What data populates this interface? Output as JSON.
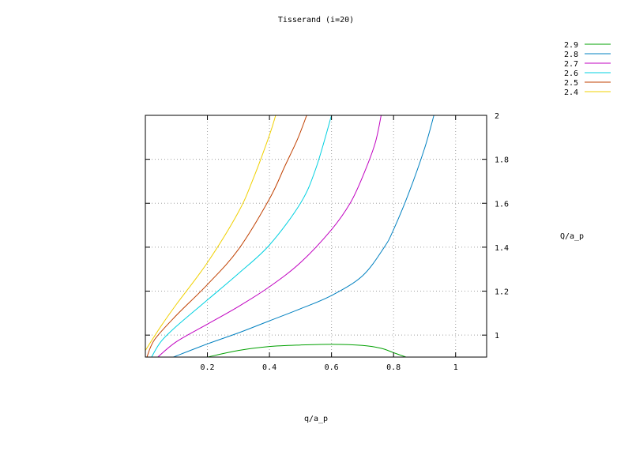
{
  "chart_data": {
    "type": "line",
    "title": "Tisserand (i=20)",
    "xlabel": "q/a_p",
    "ylabel": "Q/a_p",
    "xlim": [
      0,
      1.1
    ],
    "ylim": [
      0.9,
      2.0
    ],
    "x_ticks": [
      0.2,
      0.4,
      0.6,
      0.8,
      1
    ],
    "y_ticks": [
      1,
      1.2,
      1.4,
      1.6,
      1.8,
      2
    ],
    "y_axis_side": "right",
    "grid": true,
    "legend_placement": "top-right",
    "series": [
      {
        "name": "2.9",
        "color": "#00a000",
        "points": [
          [
            0.2,
            0.9
          ],
          [
            0.3,
            0.93
          ],
          [
            0.4,
            0.948
          ],
          [
            0.5,
            0.955
          ],
          [
            0.6,
            0.958
          ],
          [
            0.7,
            0.953
          ],
          [
            0.76,
            0.94
          ],
          [
            0.8,
            0.92
          ],
          [
            0.84,
            0.9
          ]
        ]
      },
      {
        "name": "2.8",
        "color": "#0080c0",
        "points": [
          [
            0.09,
            0.9
          ],
          [
            0.2,
            0.96
          ],
          [
            0.3,
            1.01
          ],
          [
            0.4,
            1.065
          ],
          [
            0.5,
            1.12
          ],
          [
            0.6,
            1.18
          ],
          [
            0.7,
            1.27
          ],
          [
            0.77,
            1.4
          ],
          [
            0.8,
            1.48
          ],
          [
            0.85,
            1.65
          ],
          [
            0.9,
            1.85
          ],
          [
            0.93,
            2.0
          ]
        ]
      },
      {
        "name": "2.7",
        "color": "#c000c0",
        "points": [
          [
            0.04,
            0.9
          ],
          [
            0.1,
            0.97
          ],
          [
            0.2,
            1.05
          ],
          [
            0.3,
            1.13
          ],
          [
            0.4,
            1.22
          ],
          [
            0.5,
            1.33
          ],
          [
            0.6,
            1.48
          ],
          [
            0.66,
            1.6
          ],
          [
            0.7,
            1.72
          ],
          [
            0.74,
            1.87
          ],
          [
            0.76,
            2.0
          ]
        ]
      },
      {
        "name": "2.6",
        "color": "#00d0e0",
        "points": [
          [
            0.02,
            0.9
          ],
          [
            0.05,
            0.97
          ],
          [
            0.1,
            1.04
          ],
          [
            0.2,
            1.16
          ],
          [
            0.3,
            1.28
          ],
          [
            0.4,
            1.41
          ],
          [
            0.5,
            1.6
          ],
          [
            0.55,
            1.76
          ],
          [
            0.6,
            2.0
          ]
        ]
      },
      {
        "name": "2.5",
        "color": "#c04000",
        "points": [
          [
            0.005,
            0.9
          ],
          [
            0.03,
            0.98
          ],
          [
            0.1,
            1.09
          ],
          [
            0.2,
            1.23
          ],
          [
            0.3,
            1.39
          ],
          [
            0.4,
            1.62
          ],
          [
            0.45,
            1.77
          ],
          [
            0.49,
            1.89
          ],
          [
            0.52,
            2.0
          ]
        ]
      },
      {
        "name": "2.4",
        "color": "#f0d000",
        "points": [
          [
            0.0,
            0.93
          ],
          [
            0.05,
            1.04
          ],
          [
            0.1,
            1.14
          ],
          [
            0.2,
            1.33
          ],
          [
            0.3,
            1.56
          ],
          [
            0.35,
            1.72
          ],
          [
            0.4,
            1.91
          ],
          [
            0.42,
            2.0
          ]
        ]
      }
    ]
  }
}
